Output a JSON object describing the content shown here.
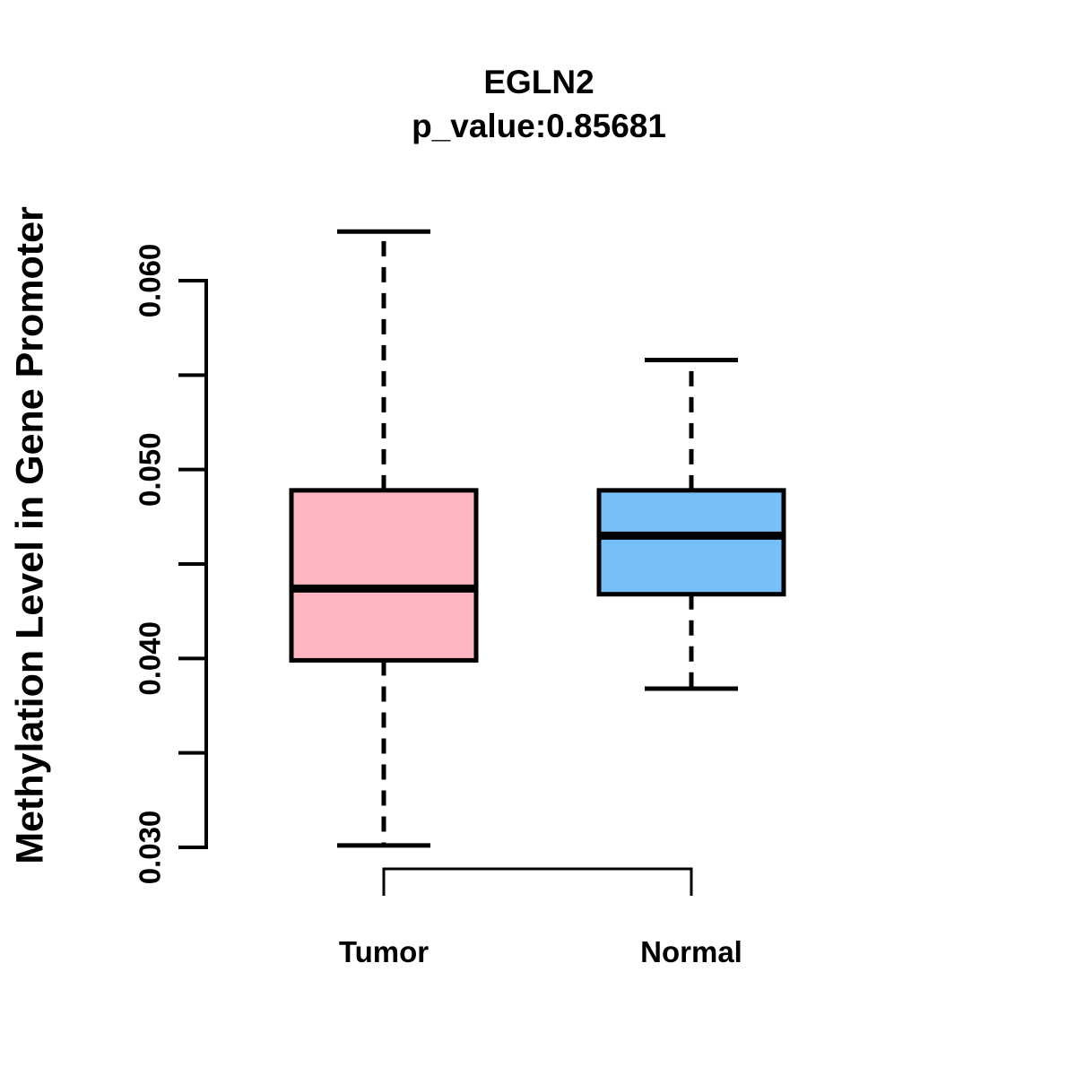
{
  "chart_data": {
    "type": "boxplot",
    "title": "EGLN2",
    "subtitle": "p_value:0.85681",
    "ylabel": "Methylation Level in Gene Promoter",
    "categories": [
      "Tumor",
      "Normal"
    ],
    "series": [
      {
        "name": "Tumor",
        "color": "#FFB6C1",
        "lower_whisker": 0.0301,
        "q1": 0.0399,
        "median": 0.0437,
        "q3": 0.0489,
        "upper_whisker": 0.0626
      },
      {
        "name": "Normal",
        "color": "#77BFF9",
        "lower_whisker": 0.0384,
        "q1": 0.0434,
        "median": 0.0465,
        "q3": 0.0489,
        "upper_whisker": 0.0558
      }
    ],
    "y_axis": {
      "range": [
        0.03,
        0.06
      ],
      "ticks": [
        0.03,
        0.035,
        0.04,
        0.045,
        0.05,
        0.055,
        0.06
      ],
      "tick_labels": [
        "0.030",
        "",
        "0.040",
        "",
        "0.050",
        "",
        "0.060"
      ]
    },
    "line_color": "#000000",
    "background_color": "#FFFFFF",
    "layout_hints": {
      "grid": false,
      "legend": "none",
      "whisker_style": "dashed",
      "x_axis_style": "bracket-below-boxes"
    }
  }
}
